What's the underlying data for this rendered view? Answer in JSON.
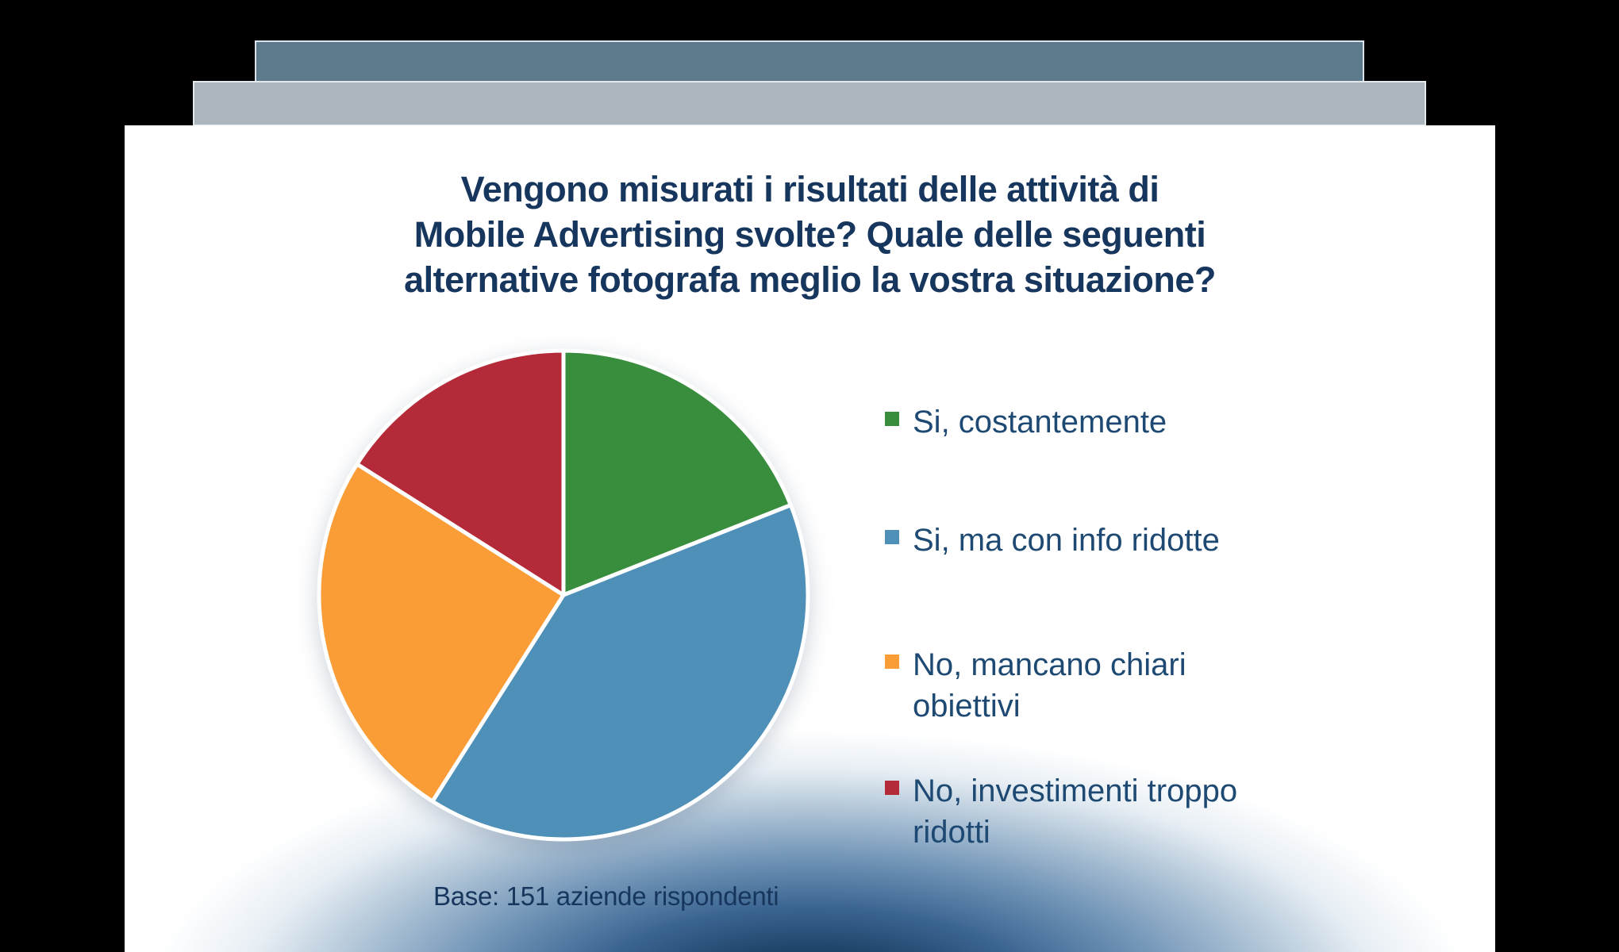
{
  "canvas": {
    "background": "#000000"
  },
  "deck_stack": {
    "back_bar_color": "#5d7a8c",
    "front_bar_color": "#aeb6bd"
  },
  "slide": {
    "background": "#ffffff",
    "title_color": "#17365d",
    "title_lines": [
      "Vengono misurati i risultati delle attività di",
      "Mobile Advertising svolte? Quale delle seguenti",
      "alternative fotografa meglio la vostra situazione?"
    ],
    "base_note": "Base: 151 aziende rispondenti",
    "base_note_color": "#17365d",
    "glow_core_color": "#0e2b46"
  },
  "legend": {
    "text_color": "#1d4972",
    "items": [
      {
        "label": "Si, costantemente",
        "color": "#388e3d"
      },
      {
        "label": "Si, ma con info ridotte",
        "color": "#4f90b9"
      },
      {
        "label": "No, mancano chiari\nobiettivi",
        "color": "#fb9d37"
      },
      {
        "label": "No, investimenti troppo\nridotti",
        "color": "#b42a38"
      }
    ]
  },
  "chart_data": {
    "type": "pie",
    "title": "Vengono misurati i risultati delle attività di Mobile Advertising svolte? Quale delle seguenti alternative fotografa meglio la vostra situazione?",
    "categories": [
      "Si, costantemente",
      "Si, ma con info ridotte",
      "No, mancano chiari obiettivi",
      "No, investimenti troppo ridotti"
    ],
    "values": [
      19,
      40,
      25,
      16
    ],
    "values_unit": "% of respondents (estimated from slice angles, no data labels shown)",
    "colors": [
      "#388e3d",
      "#4f90b9",
      "#fb9d37",
      "#b42a38"
    ],
    "start_angle": "12 o'clock, clockwise",
    "slice_border_color": "#ffffff",
    "legend_position": "right",
    "note": "Base: 151 aziende rispondenti"
  }
}
